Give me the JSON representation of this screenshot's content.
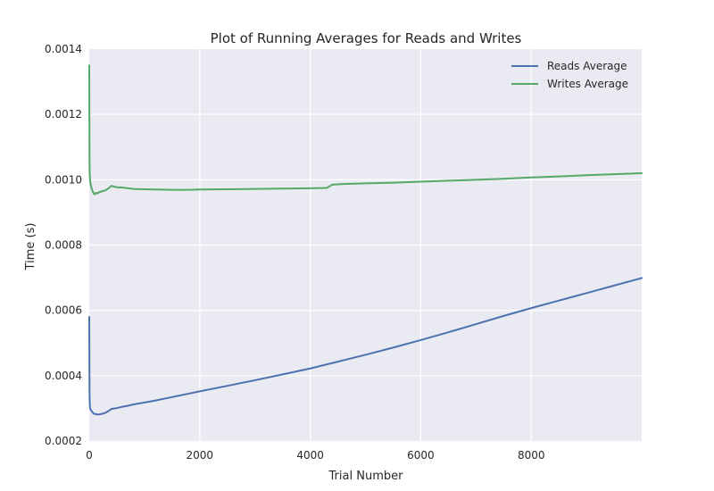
{
  "chart_data": {
    "type": "line",
    "title": "Plot of Running Averages for Reads and Writes",
    "xlabel": "Trial Number",
    "ylabel": "Time (s)",
    "xlim": [
      0,
      9999
    ],
    "ylim": [
      0.0002,
      0.0014
    ],
    "x_ticks": [
      0,
      2000,
      4000,
      6000,
      8000
    ],
    "x_tick_labels": [
      "0",
      "2000",
      "4000",
      "6000",
      "8000"
    ],
    "y_ticks": [
      0.0002,
      0.0004,
      0.0006,
      0.0008,
      0.001,
      0.0012,
      0.0014
    ],
    "y_tick_labels": [
      "0.0002",
      "0.0004",
      "0.0006",
      "0.0008",
      "0.0010",
      "0.0012",
      "0.0014"
    ],
    "grid": true,
    "legend_position": "top-right",
    "series": [
      {
        "name": "Reads Average",
        "color": "#4c72b0",
        "x": [
          0,
          5,
          10,
          20,
          40,
          60,
          80,
          100,
          130,
          160,
          200,
          250,
          300,
          350,
          400,
          500,
          600,
          700,
          800,
          1000,
          1200,
          1400,
          1600,
          1800,
          2000,
          2500,
          3000,
          3500,
          4000,
          4500,
          5000,
          5500,
          6000,
          6500,
          7000,
          7500,
          8000,
          8500,
          9000,
          9500,
          9999
        ],
        "y": [
          0.00058,
          0.00035,
          0.00031,
          0.000298,
          0.000292,
          0.000288,
          0.000284,
          0.000283,
          0.000282,
          0.000281,
          0.000282,
          0.000284,
          0.000287,
          0.000292,
          0.000298,
          0.000301,
          0.000305,
          0.000308,
          0.000312,
          0.000318,
          0.000324,
          0.000331,
          0.000338,
          0.000345,
          0.000352,
          0.000369,
          0.000386,
          0.000404,
          0.000422,
          0.000443,
          0.000464,
          0.000486,
          0.000509,
          0.000533,
          0.000558,
          0.000583,
          0.000607,
          0.00063,
          0.000653,
          0.000676,
          0.000699
        ]
      },
      {
        "name": "Writes Average",
        "color": "#55a868",
        "x": [
          0,
          5,
          10,
          20,
          40,
          60,
          80,
          100,
          120,
          150,
          180,
          220,
          260,
          300,
          350,
          400,
          450,
          500,
          600,
          700,
          800,
          1000,
          1200,
          1500,
          1800,
          2000,
          2500,
          3000,
          3500,
          4000,
          4300,
          4400,
          4600,
          5000,
          5500,
          6000,
          6500,
          7000,
          7500,
          8000,
          8500,
          9000,
          9500,
          9999
        ],
        "y": [
          0.00135,
          0.00105,
          0.00101,
          0.00099,
          0.000975,
          0.000965,
          0.000958,
          0.000955,
          0.00096,
          0.000958,
          0.000962,
          0.000964,
          0.000966,
          0.000968,
          0.000974,
          0.000981,
          0.000979,
          0.000977,
          0.000976,
          0.000974,
          0.000972,
          0.000971,
          0.00097,
          0.000969,
          0.000969,
          0.00097,
          0.000971,
          0.000972,
          0.000973,
          0.000974,
          0.000975,
          0.000985,
          0.000987,
          0.000989,
          0.000991,
          0.000994,
          0.000997,
          0.001,
          0.001003,
          0.001007,
          0.00101,
          0.001014,
          0.001017,
          0.00102
        ]
      }
    ]
  }
}
